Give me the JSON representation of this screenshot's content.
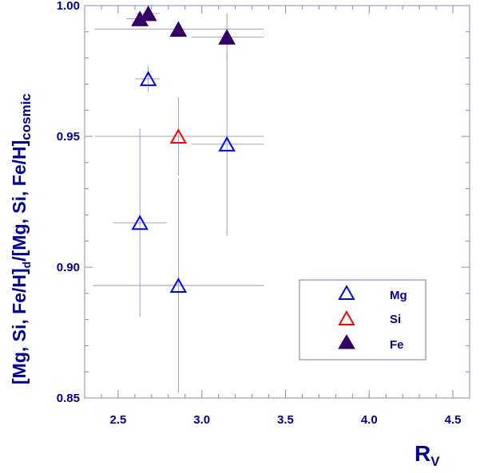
{
  "chart_data": {
    "type": "scatter",
    "xlabel": {
      "main": "R",
      "sub": "V"
    },
    "ylabel": {
      "part1": "[Mg, Si, Fe/H]",
      "sub1": "d",
      "part2": "/[Mg, Si, Fe/H]",
      "sub2": "cosmic"
    },
    "xlim": [
      2.3,
      4.6
    ],
    "ylim": [
      0.85,
      1.0
    ],
    "xticks": [
      2.5,
      3.0,
      3.5,
      4.0,
      4.5
    ],
    "xtick_labels": [
      "2.5",
      "3.0",
      "3.5",
      "4.0",
      "4.5"
    ],
    "yticks": [
      0.85,
      0.9,
      0.95,
      1.0
    ],
    "ytick_labels": [
      "0.85",
      "0.90",
      "0.95",
      "1.00"
    ],
    "grid": false,
    "legend_position": "bottom-right",
    "series": [
      {
        "name": "Mg",
        "marker": "open-triangle",
        "color": "#0000ff",
        "points": [
          {
            "x": 2.68,
            "y": 0.972,
            "xerr": [
              2.6,
              2.75
            ],
            "yerr": [
              0.967,
              0.977
            ]
          },
          {
            "x": 2.63,
            "y": 0.917,
            "xerr": [
              2.47,
              2.79
            ],
            "yerr": [
              0.881,
              0.953
            ]
          },
          {
            "x": 2.86,
            "y": 0.893,
            "xerr": [
              2.35,
              3.37
            ],
            "yerr": [
              0.852,
              0.934
            ]
          },
          {
            "x": 3.15,
            "y": 0.947,
            "xerr": [
              2.94,
              3.37
            ],
            "yerr": [
              0.912,
              0.982
            ]
          }
        ]
      },
      {
        "name": "Si",
        "marker": "open-triangle",
        "color": "#ff0000",
        "points": [
          {
            "x": 2.86,
            "y": 0.95,
            "xerr": [
              2.36,
              3.37
            ],
            "yerr": [
              0.935,
              0.965
            ]
          }
        ]
      },
      {
        "name": "Fe",
        "marker": "filled-triangle",
        "color": "#330066",
        "points": [
          {
            "x": 2.63,
            "y": 0.995,
            "xerr": [
              2.55,
              2.72
            ],
            "yerr": [
              0.992,
              0.998
            ]
          },
          {
            "x": 2.68,
            "y": 0.997,
            "xerr": [
              2.61,
              2.75
            ],
            "yerr": [
              0.995,
              0.999
            ]
          },
          {
            "x": 2.86,
            "y": 0.991,
            "xerr": [
              2.36,
              3.37
            ],
            "yerr": [
              0.988,
              0.994
            ]
          },
          {
            "x": 3.15,
            "y": 0.988,
            "xerr": [
              2.94,
              3.37
            ],
            "yerr": [
              0.979,
              0.997
            ]
          }
        ]
      }
    ]
  }
}
